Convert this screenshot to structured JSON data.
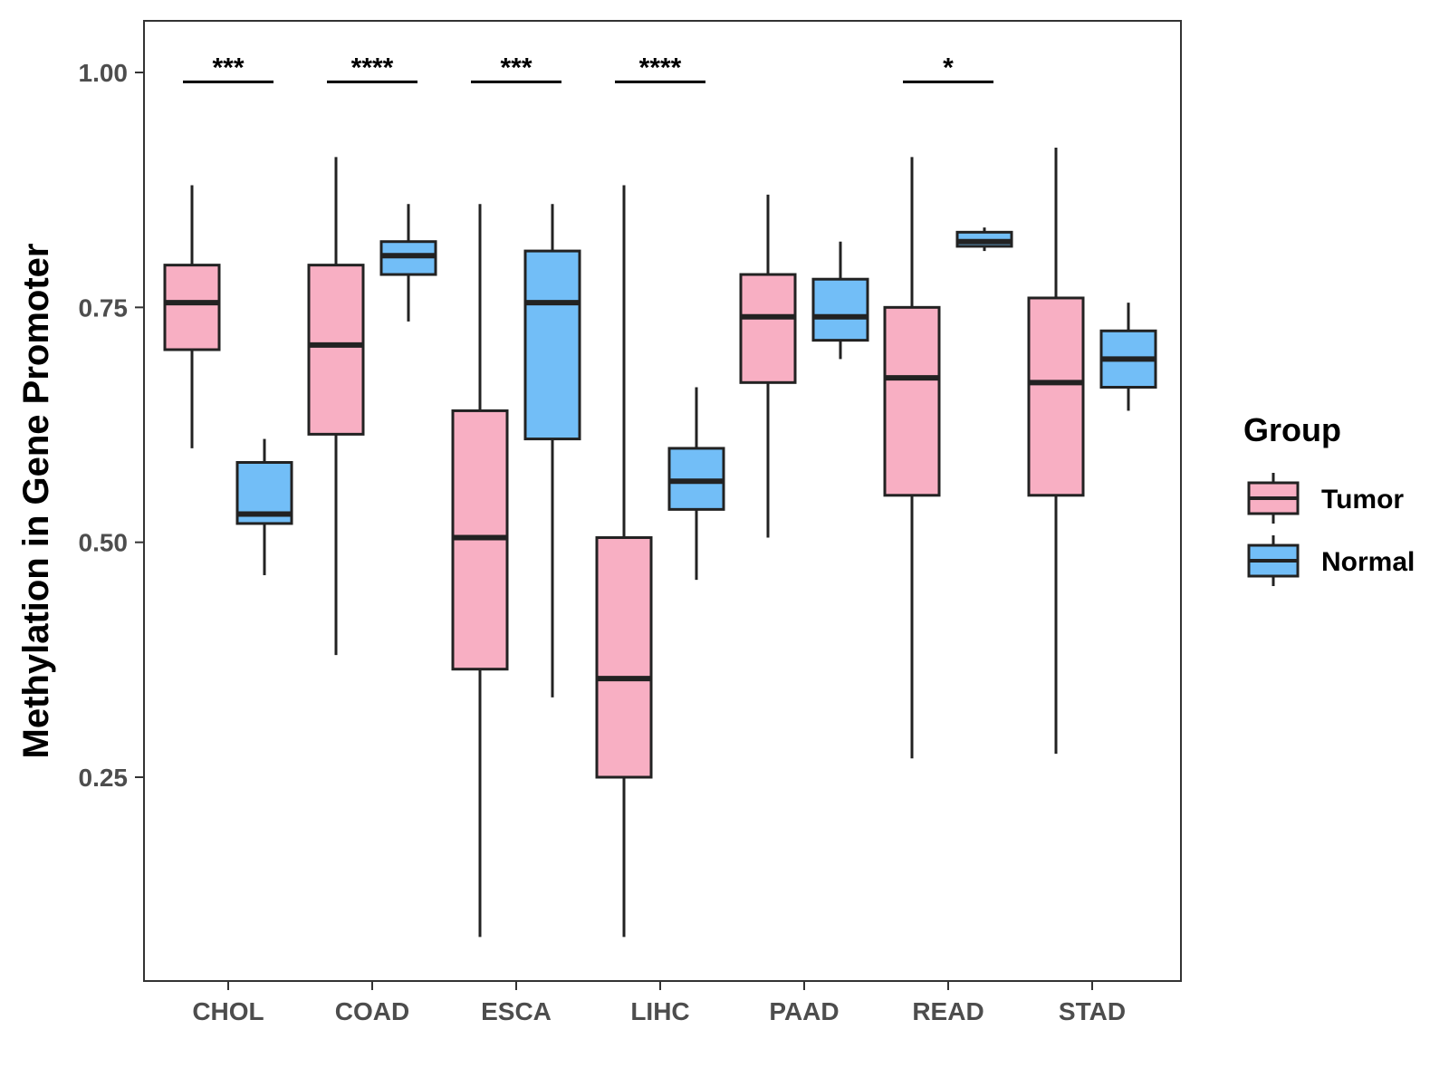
{
  "chart_data": {
    "type": "boxplot",
    "title": "",
    "xlabel": "",
    "ylabel": "Methylation in Gene Promoter",
    "ylim": [
      0.03,
      1.05
    ],
    "y_ticks": [
      0.25,
      0.5,
      0.75,
      1.0
    ],
    "y_tick_labels": [
      "0.25",
      "0.50",
      "0.75",
      "1.00"
    ],
    "categories": [
      "CHOL",
      "COAD",
      "ESCA",
      "LIHC",
      "PAAD",
      "READ",
      "STAD"
    ],
    "legend": {
      "title": "Group",
      "position": "right",
      "entries": [
        {
          "name": "Tumor",
          "color": "#F8AFC3"
        },
        {
          "name": "Normal",
          "color": "#72BEF7"
        }
      ]
    },
    "series": [
      {
        "name": "Tumor",
        "color": "#F8AFC3",
        "boxes": [
          {
            "min": 0.6,
            "q1": 0.705,
            "median": 0.755,
            "q3": 0.795,
            "max": 0.88
          },
          {
            "min": 0.38,
            "q1": 0.615,
            "median": 0.71,
            "q3": 0.795,
            "max": 0.91
          },
          {
            "min": 0.08,
            "q1": 0.365,
            "median": 0.505,
            "q3": 0.64,
            "max": 0.86
          },
          {
            "min": 0.08,
            "q1": 0.25,
            "median": 0.355,
            "q3": 0.505,
            "max": 0.88
          },
          {
            "min": 0.505,
            "q1": 0.67,
            "median": 0.74,
            "q3": 0.785,
            "max": 0.87
          },
          {
            "min": 0.27,
            "q1": 0.55,
            "median": 0.675,
            "q3": 0.75,
            "max": 0.91
          },
          {
            "min": 0.275,
            "q1": 0.55,
            "median": 0.67,
            "q3": 0.76,
            "max": 0.92
          }
        ]
      },
      {
        "name": "Normal",
        "color": "#72BEF7",
        "boxes": [
          {
            "min": 0.465,
            "q1": 0.52,
            "median": 0.53,
            "q3": 0.585,
            "max": 0.61
          },
          {
            "min": 0.735,
            "q1": 0.785,
            "median": 0.805,
            "q3": 0.82,
            "max": 0.86
          },
          {
            "min": 0.335,
            "q1": 0.61,
            "median": 0.755,
            "q3": 0.81,
            "max": 0.86
          },
          {
            "min": 0.46,
            "q1": 0.535,
            "median": 0.565,
            "q3": 0.6,
            "max": 0.665
          },
          {
            "min": 0.695,
            "q1": 0.715,
            "median": 0.74,
            "q3": 0.78,
            "max": 0.82
          },
          {
            "min": 0.81,
            "q1": 0.815,
            "median": 0.82,
            "q3": 0.83,
            "max": 0.835
          },
          {
            "min": 0.64,
            "q1": 0.665,
            "median": 0.695,
            "q3": 0.725,
            "max": 0.755
          }
        ]
      }
    ],
    "significance": [
      {
        "category": "CHOL",
        "label": "***"
      },
      {
        "category": "COAD",
        "label": "****"
      },
      {
        "category": "ESCA",
        "label": "***"
      },
      {
        "category": "LIHC",
        "label": "****"
      },
      {
        "category": "READ",
        "label": "*"
      }
    ],
    "significance_y": 0.99
  }
}
